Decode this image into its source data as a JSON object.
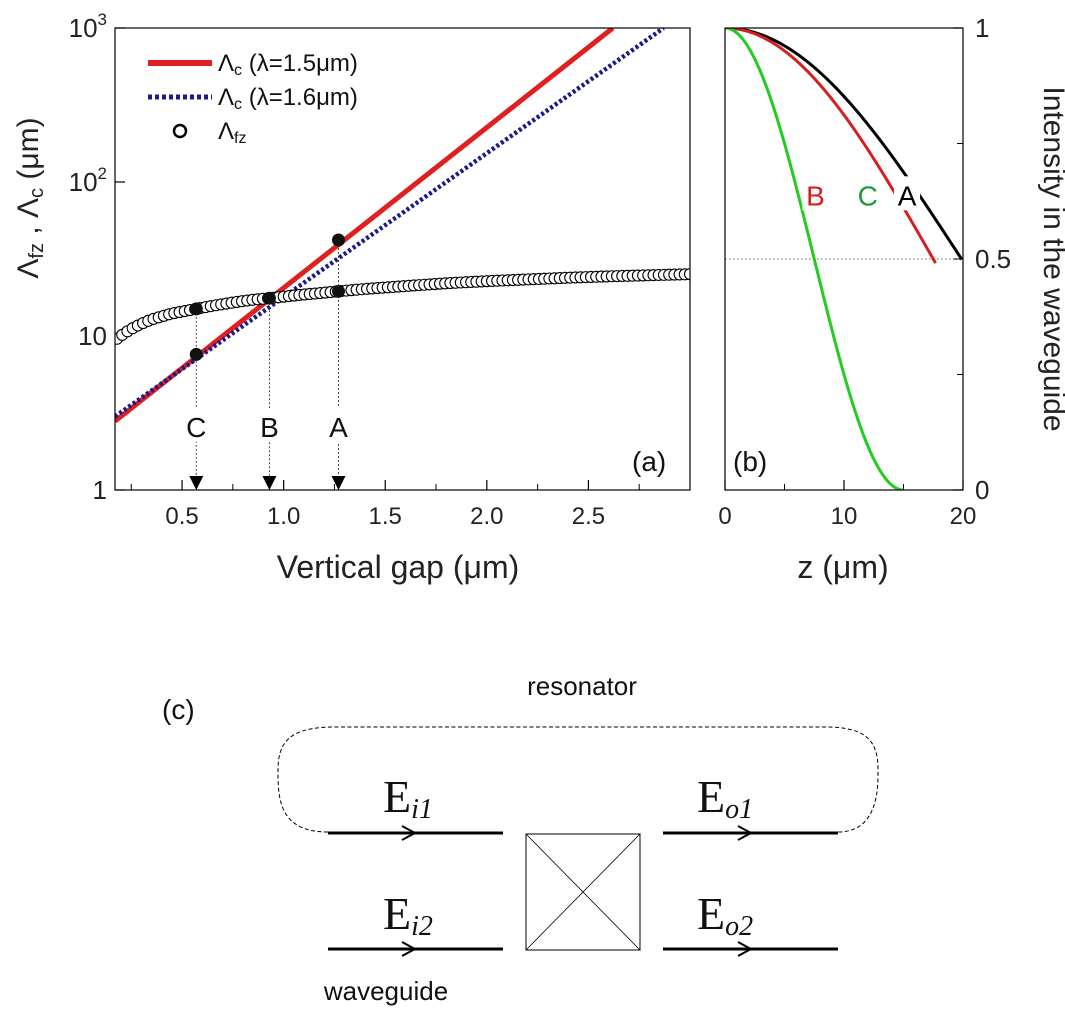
{
  "chart_data": [
    {
      "panel": "(a)",
      "type": "line",
      "xlabel": "Vertical gap (μm)",
      "ylabel": "Λfz , Λc (μm)",
      "ylabel_parts": {
        "sym1": "Λ",
        "sub1": "fz",
        "sep": " , ",
        "sym2": "Λ",
        "sub2": "c",
        "unit": " (μm)"
      },
      "xlim": [
        0.17,
        3.0
      ],
      "ylim": [
        1,
        1000
      ],
      "yscale": "log",
      "xticks": [
        0.5,
        1.0,
        1.5,
        2.0,
        2.5
      ],
      "xtick_labels": [
        "0.5",
        "1.0",
        "1.5",
        "2.0",
        "2.5"
      ],
      "yticks": [
        1,
        10,
        100,
        1000
      ],
      "ytick_labels": [
        {
          "base": "1",
          "exp": ""
        },
        {
          "base": "10",
          "exp": ""
        },
        {
          "base": "10",
          "exp": "2"
        },
        {
          "base": "10",
          "exp": "3"
        }
      ],
      "legend_position": "top-left",
      "series": [
        {
          "name": "Λc (λ=1.5μm)",
          "legend": {
            "sym": "Λ",
            "sub": "c",
            "rest": " (λ=1.5μm)"
          },
          "style": "solid",
          "color": "#e02020",
          "x": [
            0.17,
            2.62
          ],
          "y": [
            2.8,
            1000
          ]
        },
        {
          "name": "Λc (λ=1.6μm)",
          "legend": {
            "sym": "Λ",
            "sub": "c",
            "rest": " (λ=1.6μm)"
          },
          "style": "dotted",
          "color": "#1a1a8c",
          "x": [
            0.17,
            2.87
          ],
          "y": [
            3.0,
            1000
          ]
        },
        {
          "name": "Λfz",
          "legend": {
            "sym": "Λ",
            "sub": "fz",
            "rest": ""
          },
          "style": "open-circles",
          "color": "#000000",
          "x": [
            0.18,
            0.22,
            0.26,
            0.3,
            0.35,
            0.4,
            0.45,
            0.5,
            0.57,
            0.65,
            0.75,
            0.85,
            0.93,
            1.0,
            1.1,
            1.2,
            1.27,
            1.4,
            1.6,
            1.8,
            2.0,
            2.2,
            2.4,
            2.6,
            2.8,
            3.0
          ],
          "y": [
            9.6,
            10.5,
            11.3,
            12.0,
            12.8,
            13.4,
            14.0,
            14.4,
            15.0,
            15.7,
            16.5,
            17.2,
            17.6,
            18.0,
            18.6,
            19.1,
            19.5,
            20.2,
            21.1,
            22.0,
            22.7,
            23.3,
            23.9,
            24.4,
            24.8,
            25.2
          ]
        }
      ],
      "highlight_points": [
        {
          "x": 0.57,
          "y": 15.0
        },
        {
          "x": 0.57,
          "y": 7.6
        },
        {
          "x": 0.93,
          "y": 17.6
        },
        {
          "x": 1.27,
          "y": 19.5
        },
        {
          "x": 1.27,
          "y": 42
        }
      ],
      "markers": [
        {
          "label": "C",
          "x": 0.57,
          "y_top": 15.0
        },
        {
          "label": "B",
          "x": 0.93,
          "y_top": 17.6
        },
        {
          "label": "A",
          "x": 1.27,
          "y_top": 42
        }
      ]
    },
    {
      "panel": "(b)",
      "type": "line",
      "xlabel": "z (μm)",
      "ylabel": "Intensity in the waveguide",
      "xlim": [
        0,
        20
      ],
      "ylim": [
        0,
        1
      ],
      "xticks": [
        0,
        10,
        20
      ],
      "xtick_labels": [
        "0",
        "10",
        "20"
      ],
      "yticks": [
        0,
        0.5,
        1
      ],
      "ytick_labels": [
        "0",
        "0.5",
        "1"
      ],
      "reference_line": 0.5,
      "series": [
        {
          "name": "A",
          "color": "#000000",
          "label_color": "#000000",
          "label_z": 15.3,
          "label_y": 0.64,
          "period_z": 79.5,
          "z_max": 19.9
        },
        {
          "name": "B",
          "color": "#d42020",
          "label_color": "#d42020",
          "label_z": 7.6,
          "label_y": 0.64,
          "period_z": 70.0,
          "z_max": 17.7
        },
        {
          "name": "C",
          "color": "#22cc22",
          "label_color": "#1a9a3a",
          "label_z": 12.0,
          "label_y": 0.64,
          "period_z": 30.0,
          "z_max": 15.0
        }
      ]
    }
  ],
  "diagram": {
    "panel": "(c)",
    "resonator_label": "resonator",
    "waveguide_label": "waveguide",
    "fields": [
      {
        "id": "ei1",
        "base": "E",
        "sub": "i1"
      },
      {
        "id": "eo1",
        "base": "E",
        "sub": "o1"
      },
      {
        "id": "ei2",
        "base": "E",
        "sub": "i2"
      },
      {
        "id": "eo2",
        "base": "E",
        "sub": "o2"
      }
    ]
  }
}
